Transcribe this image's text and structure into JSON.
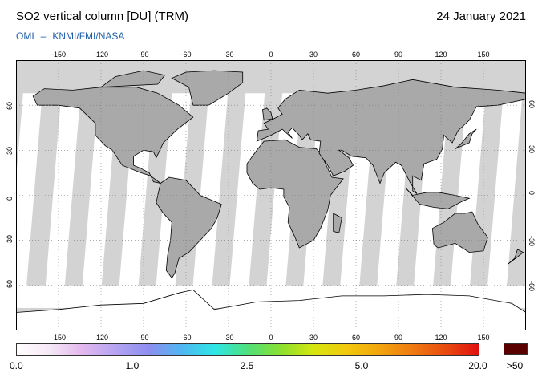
{
  "header": {
    "title": "SO2 vertical column [DU] (TRM)",
    "date": "24 January 2021",
    "credit_left": "OMI",
    "credit_sep": "–",
    "credit_right": "KNMI/FMI/NASA"
  },
  "map": {
    "lon_ticks": [
      "-150",
      "-120",
      "-90",
      "-60",
      "-30",
      "0",
      "30",
      "60",
      "90",
      "120",
      "150"
    ],
    "lat_ticks": [
      "60",
      "30",
      "0",
      "-30",
      "-60"
    ],
    "colors": {
      "land": "#a9a9a9",
      "ocean_nodata": "#d3d3d3",
      "ocean_data": "#ffffff",
      "coast": "#000000",
      "grid": "#7a7a7a"
    }
  },
  "colorbar": {
    "labels": [
      "0.0",
      "1.0",
      "2.5",
      "5.0",
      "20.0"
    ],
    "over_label": ">50",
    "colors": [
      "#ffffff",
      "#f6e8f6",
      "#e3b7ee",
      "#b6a4f3",
      "#8d8ef0",
      "#4fb6f3",
      "#2de6e6",
      "#4fe07a",
      "#8be02f",
      "#d6e60f",
      "#f2c90d",
      "#f2a40d",
      "#ef7a12",
      "#e94a10",
      "#e01010",
      "#5a0000"
    ]
  }
}
